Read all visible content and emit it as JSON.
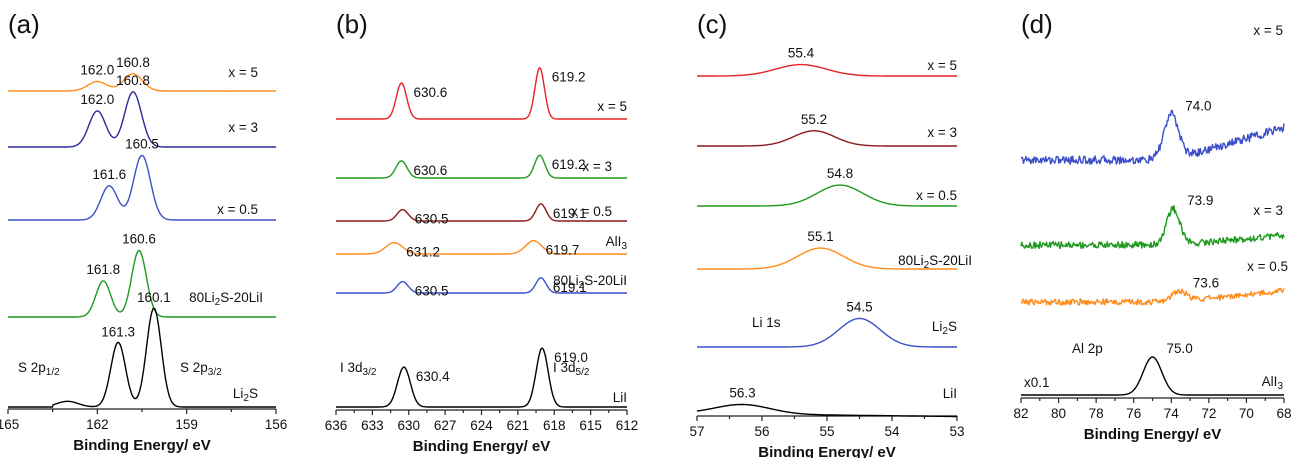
{
  "chart_data": [
    {
      "type": "line",
      "panel_label": "(a)",
      "xlabel": "Binding Energy/ eV",
      "xlim": [
        165,
        156
      ],
      "xticks": [
        "165",
        "162",
        "159",
        "156"
      ],
      "series": [
        {
          "name": "x = 5",
          "color": "#ff8c1a",
          "peaks": [
            {
              "x": 162.0,
              "label": "162.0",
              "height": 0.25,
              "width": 0.45
            },
            {
              "x": 160.8,
              "label": "160.8",
              "height": 0.45,
              "width": 0.45
            }
          ]
        },
        {
          "name": "x = 3",
          "color": "#2a2a9a",
          "peaks": [
            {
              "x": 162.0,
              "label": "162.0",
              "height": 0.95,
              "width": 0.4
            },
            {
              "x": 160.8,
              "label": "160.8",
              "height": 1.45,
              "width": 0.4
            }
          ]
        },
        {
          "name": "x = 0.5",
          "color": "#3b4fc8",
          "peaks": [
            {
              "x": 161.6,
              "label": "161.6",
              "height": 0.9,
              "width": 0.4
            },
            {
              "x": 160.5,
              "label": "160.5",
              "height": 1.7,
              "width": 0.4
            }
          ]
        },
        {
          "name": "80Li2S-20LiI",
          "color": "#1e9a1e",
          "peaks": [
            {
              "x": 161.8,
              "label": "161.8",
              "height": 0.95,
              "width": 0.35
            },
            {
              "x": 160.6,
              "label": "160.6",
              "height": 1.75,
              "width": 0.35
            }
          ]
        },
        {
          "name": "Li2S",
          "color": "#000000",
          "peaks": [
            {
              "x": 161.3,
              "label": "161.3",
              "height": 1.7,
              "width": 0.35
            },
            {
              "x": 160.1,
              "label": "160.1",
              "height": 2.6,
              "width": 0.35
            }
          ],
          "annotations": [
            "S 2p1/2",
            "S 2p3/2"
          ]
        }
      ]
    },
    {
      "type": "line",
      "panel_label": "(b)",
      "xlabel": "Binding Energy/ eV",
      "xlim": [
        636,
        612
      ],
      "xticks": [
        "636",
        "633",
        "630",
        "627",
        "624",
        "621",
        "618",
        "615",
        "612"
      ],
      "series": [
        {
          "name": "x = 5",
          "color": "#e82323",
          "peaks": [
            {
              "x": 630.6,
              "label": "630.6",
              "height": 0.95,
              "width": 0.6
            },
            {
              "x": 619.2,
              "label": "619.2",
              "height": 1.35,
              "width": 0.55
            }
          ]
        },
        {
          "name": "x = 3",
          "color": "#1e9a1e",
          "peaks": [
            {
              "x": 630.6,
              "label": "630.6",
              "height": 0.45,
              "width": 0.65
            },
            {
              "x": 619.2,
              "label": "619.2",
              "height": 0.6,
              "width": 0.6
            }
          ]
        },
        {
          "name": "x = 0.5",
          "color": "#8b1a1a",
          "peaks": [
            {
              "x": 630.5,
              "label": "630.5",
              "height": 0.3,
              "width": 0.65
            },
            {
              "x": 619.1,
              "label": "619.1",
              "height": 0.45,
              "width": 0.6
            }
          ]
        },
        {
          "name": "AlI3",
          "color": "#ff8c1a",
          "peaks": [
            {
              "x": 631.2,
              "label": "631.2",
              "height": 0.3,
              "width": 1.0
            },
            {
              "x": 619.7,
              "label": "619.7",
              "height": 0.35,
              "width": 0.95
            }
          ]
        },
        {
          "name": "80Li2S-20LiI",
          "color": "#3b4fc8",
          "peaks": [
            {
              "x": 630.5,
              "label": "630.5",
              "height": 0.3,
              "width": 0.65
            },
            {
              "x": 619.1,
              "label": "619.1",
              "height": 0.4,
              "width": 0.6
            }
          ]
        },
        {
          "name": "LiI",
          "color": "#000000",
          "peaks": [
            {
              "x": 630.4,
              "label": "630.4",
              "height": 1.05,
              "width": 0.75
            },
            {
              "x": 619.0,
              "label": "619.0",
              "height": 1.55,
              "width": 0.7
            }
          ],
          "annotations": [
            "I 3d3/2",
            "I 3d5/2"
          ]
        }
      ]
    },
    {
      "type": "line",
      "panel_label": "(c)",
      "xlabel": "Binding Energy/ eV",
      "xlim": [
        57,
        53
      ],
      "xticks": [
        "57",
        "56",
        "55",
        "54",
        "53"
      ],
      "series": [
        {
          "name": "x = 5",
          "color": "#e82323",
          "peaks": [
            {
              "x": 55.4,
              "label": "55.4",
              "height": 0.3,
              "width": 0.55
            }
          ]
        },
        {
          "name": "x = 3",
          "color": "#8b1a1a",
          "peaks": [
            {
              "x": 55.2,
              "label": "55.2",
              "height": 0.4,
              "width": 0.45
            }
          ]
        },
        {
          "name": "x = 0.5",
          "color": "#1e9a1e",
          "peaks": [
            {
              "x": 54.8,
              "label": "54.8",
              "height": 0.55,
              "width": 0.5
            }
          ]
        },
        {
          "name": "80Li2S-20LiI",
          "color": "#ff8c1a",
          "peaks": [
            {
              "x": 55.1,
              "label": "55.1",
              "height": 0.55,
              "width": 0.5
            }
          ]
        },
        {
          "name": "Li2S",
          "color": "#3b4fc8",
          "peaks": [
            {
              "x": 54.5,
              "label": "54.5",
              "height": 0.75,
              "width": 0.45
            }
          ],
          "annotations": [
            "Li 1s"
          ]
        },
        {
          "name": "LiI",
          "color": "#000000",
          "peaks": [
            {
              "x": 56.3,
              "label": "56.3",
              "height": 0.25,
              "width": 0.6
            }
          ]
        }
      ]
    },
    {
      "type": "line",
      "panel_label": "(d)",
      "xlabel": "Binding Energy/ eV",
      "xlim": [
        82,
        68
      ],
      "xticks": [
        "82",
        "80",
        "78",
        "76",
        "74",
        "72",
        "70",
        "68"
      ],
      "series": [
        {
          "name": "x = 5",
          "color": "#3b4fc8",
          "peaks": [
            {
              "x": 74.0,
              "label": "74.0",
              "height": 1.2,
              "width": 0.55
            }
          ]
        },
        {
          "name": "x = 3",
          "color": "#1e9a1e",
          "peaks": [
            {
              "x": 73.9,
              "label": "73.9",
              "height": 0.95,
              "width": 0.5
            }
          ]
        },
        {
          "name": "x = 0.5",
          "color": "#ff8c1a",
          "peaks": [
            {
              "x": 73.6,
              "label": "73.6",
              "height": 0.28,
              "width": 0.55
            }
          ]
        },
        {
          "name": "AlI3",
          "color": "#000000",
          "peaks": [
            {
              "x": 75.0,
              "label": "75.0",
              "height": 1.0,
              "width": 0.7
            }
          ],
          "annotations": [
            "Al 2p",
            "x0.1"
          ]
        }
      ]
    }
  ]
}
